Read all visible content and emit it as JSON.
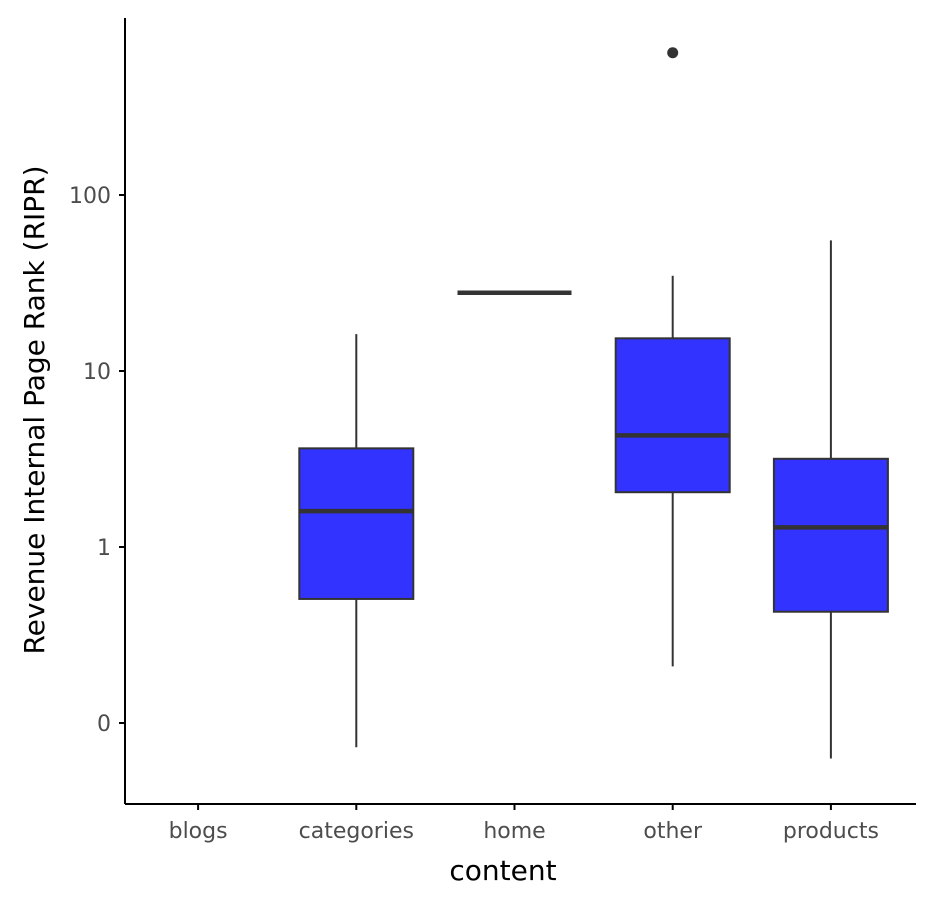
{
  "chart_data": {
    "type": "box",
    "xlabel": "content",
    "ylabel": "Revenue Internal Page Rank (RIPR)",
    "y_scale": "pseudo-log10",
    "y_ticks": [
      0,
      1,
      10,
      100
    ],
    "y_tick_labels": [
      "0",
      "1",
      "10",
      "100"
    ],
    "categories": [
      "blogs",
      "categories",
      "home",
      "other",
      "products"
    ],
    "colors": {
      "box_fill": "#3333ff",
      "box_stroke": "#333333",
      "axis": "#000000",
      "tick_label": "#4d4d4d"
    },
    "boxes": [
      {
        "category": "blogs",
        "present": false
      },
      {
        "category": "categories",
        "present": true,
        "whisker_low": -0.1,
        "q1": 0.63,
        "median": 1.83,
        "q3": 4.2,
        "whisker_high": 16.5,
        "outliers": []
      },
      {
        "category": "home",
        "present": true,
        "whisker_low": 28.5,
        "q1": 28.5,
        "median": 28.5,
        "q3": 28.5,
        "whisker_high": 28.5,
        "outliers": []
      },
      {
        "category": "other",
        "present": true,
        "whisker_low": 0.25,
        "q1": 2.4,
        "median": 4.9,
        "q3": 15.6,
        "whisker_high": 35.5,
        "outliers": [
          605
        ]
      },
      {
        "category": "products",
        "present": true,
        "whisker_low": -0.15,
        "q1": 0.55,
        "median": 1.42,
        "q3": 3.7,
        "whisker_high": 56,
        "outliers": []
      }
    ],
    "grid": false,
    "legend": "none"
  }
}
